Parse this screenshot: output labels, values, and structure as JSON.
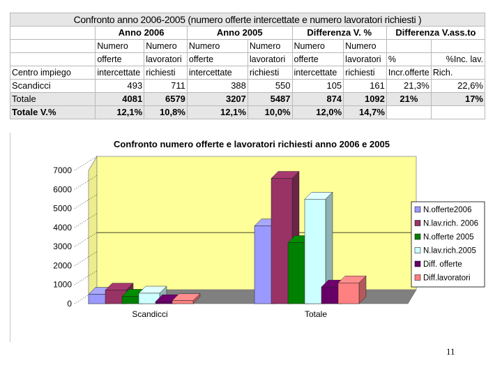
{
  "table": {
    "title": "Confronto anno 2006-2005 (numero offerte intercettate e numero lavoratori richiesti )",
    "groups": [
      "Anno 2006",
      "Anno 2005",
      "Differenza V. %",
      "Differenza V.ass.to"
    ],
    "row_header": "Centro impiego",
    "col_headers": {
      "off": [
        "Numero",
        "offerte",
        "intercettate"
      ],
      "lav": [
        "Numero",
        "lavoratori",
        "richiesti"
      ],
      "pct_off": "%",
      "pct_off2": "Incr.offerte",
      "pct_lav": "%Inc. lav.",
      "pct_lav2": "Rich."
    },
    "rows": [
      {
        "label": "Scandicci",
        "vals": [
          "493",
          "711",
          "388",
          "550",
          "105",
          "161",
          "21,3%",
          "22,6%"
        ]
      },
      {
        "label": "Totale",
        "vals": [
          "4081",
          "6579",
          "3207",
          "5487",
          "874",
          "1092",
          "21%",
          "17%"
        ]
      },
      {
        "label": "Totale V.%",
        "vals": [
          "12,1%",
          "10,8%",
          "12,1%",
          "10,0%",
          "12,0%",
          "14,7%",
          "",
          ""
        ]
      }
    ]
  },
  "chart_data": {
    "type": "bar",
    "title": "Confronto numero offerte e lavoratori richiesti anno 2006 e 2005",
    "categories": [
      "Scandicci",
      "Totale"
    ],
    "series": [
      {
        "name": "N.offerte2006",
        "color": "#9999ff",
        "values": [
          493,
          4081
        ]
      },
      {
        "name": "N.lav.rich. 2006",
        "color": "#993366",
        "values": [
          711,
          6579
        ]
      },
      {
        "name": "N.offerte 2005",
        "color": "#008000",
        "values": [
          388,
          3207
        ]
      },
      {
        "name": "N.lav.rich.2005",
        "color": "#ccffff",
        "values": [
          550,
          5487
        ]
      },
      {
        "name": "Diff. offerte",
        "color": "#660066",
        "values": [
          105,
          874
        ]
      },
      {
        "name": "Diff.lavoratori",
        "color": "#ff8080",
        "values": [
          161,
          1092
        ]
      }
    ],
    "y_ticks": [
      "0",
      "1000",
      "2000",
      "3000",
      "4000",
      "5000",
      "6000",
      "7000"
    ],
    "ylim": [
      0,
      7000
    ],
    "legend": "right",
    "wall_color": "#ffff99"
  },
  "page_number": "11"
}
